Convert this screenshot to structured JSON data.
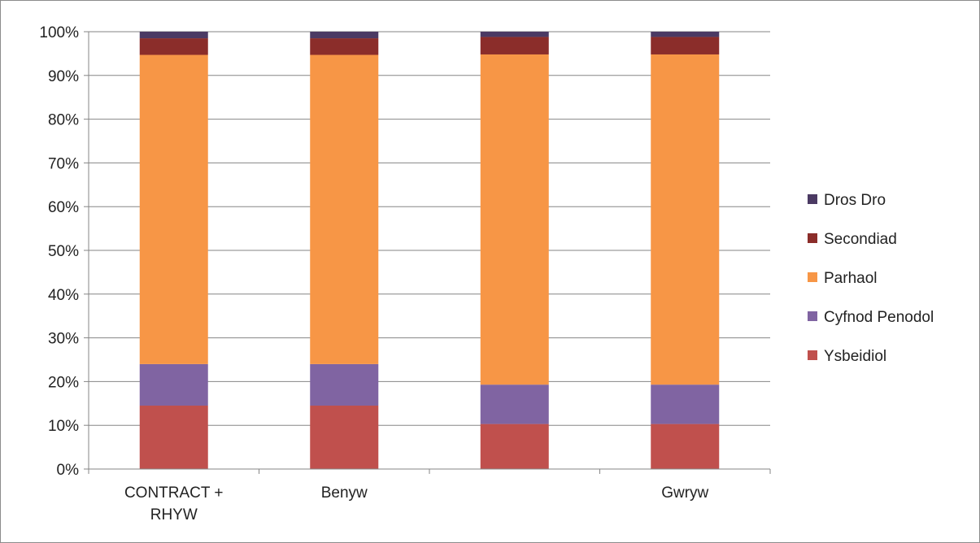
{
  "chart_data": {
    "type": "bar",
    "stacked": true,
    "categories": [
      [
        "CONTRACT +",
        "RHYW"
      ],
      [
        "Benyw"
      ],
      [
        ""
      ],
      [
        "Gwryw"
      ]
    ],
    "series": [
      {
        "name": "Ysbeidiol",
        "color": "#c0504d",
        "values": [
          14.5,
          14.5,
          10.3,
          10.3
        ]
      },
      {
        "name": "Cyfnod Penodol",
        "color": "#8064a2",
        "values": [
          9.5,
          9.5,
          9.0,
          9.0
        ]
      },
      {
        "name": "Parhaol",
        "color": "#f79646",
        "values": [
          70.7,
          70.7,
          75.5,
          75.5
        ]
      },
      {
        "name": "Secondiad",
        "color": "#8b2d2a",
        "values": [
          3.8,
          3.8,
          4.0,
          4.0
        ]
      },
      {
        "name": "Dros Dro",
        "color": "#4b3a63",
        "values": [
          1.5,
          1.5,
          1.2,
          1.2
        ]
      }
    ],
    "yticks": [
      "0%",
      "10%",
      "20%",
      "30%",
      "40%",
      "50%",
      "60%",
      "70%",
      "80%",
      "90%",
      "100%"
    ],
    "ylim": [
      0,
      100
    ],
    "grid": true,
    "legend_position": "right",
    "legend_order": [
      "Dros Dro",
      "Secondiad",
      "Parhaol",
      "Cyfnod Penodol",
      "Ysbeidiol"
    ]
  }
}
